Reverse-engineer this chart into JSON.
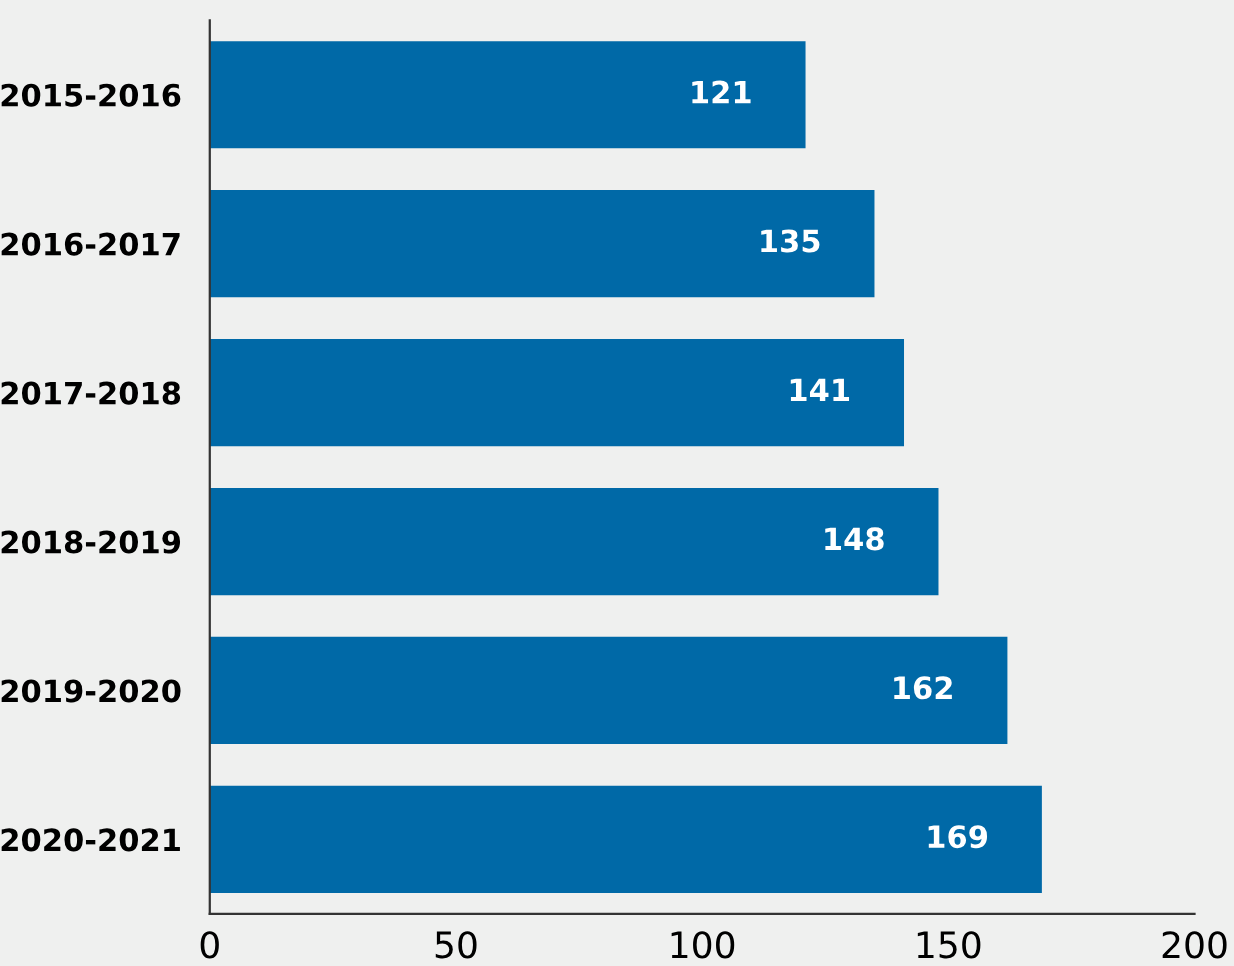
{
  "chart_data": {
    "type": "bar",
    "orientation": "horizontal",
    "categories": [
      "2015-2016",
      "2016-2017",
      "2017-2018",
      "2018-2019",
      "2019-2020",
      "2020-2021"
    ],
    "values": [
      121,
      135,
      141,
      148,
      162,
      169
    ],
    "color": "#0069a7",
    "xlim": [
      0,
      200
    ],
    "xticks": [
      0,
      50,
      100,
      150,
      200
    ],
    "data_labels": true,
    "grid": false,
    "legend": false
  }
}
